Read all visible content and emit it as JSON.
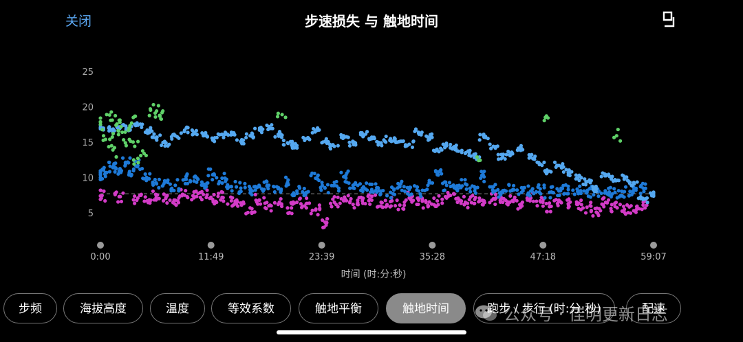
{
  "header": {
    "close_label": "关闭",
    "title": "步速损失 与 触地时间",
    "expand_icon": "expand-icon"
  },
  "tabs": [
    {
      "label": "步频",
      "active": false
    },
    {
      "label": "海拔高度",
      "active": false
    },
    {
      "label": "温度",
      "active": false
    },
    {
      "label": "等效系数",
      "active": false
    },
    {
      "label": "触地平衡",
      "active": false
    },
    {
      "label": "触地时间",
      "active": true
    },
    {
      "label": "跑步 / 步行 (时:分:秒)",
      "active": false
    },
    {
      "label": "配速",
      "active": false
    }
  ],
  "watermark": {
    "text": "公众号 · 佳明更新日志",
    "icon": "wechat-icon"
  },
  "chart_data": {
    "type": "scatter",
    "title": "",
    "xlabel": "时间 (时:分:秒)",
    "ylabel": "",
    "xlim": [
      0,
      3547
    ],
    "ylim": [
      0,
      25
    ],
    "yticks": [
      5,
      10,
      15,
      20,
      25
    ],
    "xticks": [
      {
        "value": 0,
        "label": "0:00"
      },
      {
        "value": 709,
        "label": "11:49"
      },
      {
        "value": 1419,
        "label": "23:39"
      },
      {
        "value": 2128,
        "label": "35:28"
      },
      {
        "value": 2838,
        "label": "47:18"
      },
      {
        "value": 3547,
        "label": "59:07"
      }
    ],
    "reference_line": {
      "y": 7.8,
      "style": "dashed"
    },
    "colors": {
      "light_blue": "#55a8f0",
      "dark_blue": "#1e7ad8",
      "magenta": "#d33bc7",
      "green": "#5fd068",
      "reference": "#888888"
    },
    "series": [
      {
        "color": "light_blue",
        "x": [
          0,
          60,
          120,
          180,
          240,
          300,
          360,
          420,
          480,
          540,
          600,
          660,
          720,
          780,
          840,
          900,
          960,
          1020,
          1080,
          1140,
          1200,
          1260,
          1320,
          1380,
          1440,
          1500,
          1560,
          1620,
          1680,
          1740,
          1800,
          1860,
          1920,
          1980,
          2040,
          2100,
          2160,
          2220,
          2280,
          2340,
          2400,
          2460,
          2520,
          2580,
          2640,
          2700,
          2760,
          2820,
          2880,
          2940,
          3000,
          3060,
          3120,
          3180,
          3240,
          3300,
          3360,
          3420,
          3480,
          3547
        ],
        "y": [
          17.2,
          17.0,
          17.2,
          17.0,
          17.5,
          16.8,
          15.8,
          15.0,
          16.0,
          16.8,
          16.5,
          16.0,
          15.5,
          16.2,
          16.5,
          15.2,
          16.0,
          16.8,
          17.3,
          16.2,
          15.0,
          14.6,
          15.6,
          16.8,
          15.2,
          14.5,
          16.0,
          15.0,
          16.2,
          15.8,
          15.0,
          15.6,
          15.2,
          14.8,
          16.5,
          15.8,
          13.9,
          14.6,
          14.2,
          13.5,
          13.0,
          15.8,
          14.5,
          13.0,
          13.6,
          14.2,
          13.0,
          12.0,
          11.0,
          11.8,
          10.8,
          10.0,
          9.5,
          8.5,
          10.5,
          9.8,
          10.0,
          9.2,
          7.0,
          7.8
        ]
      },
      {
        "color": "dark_blue",
        "x": [
          0,
          40,
          80,
          120,
          160,
          200,
          240,
          300,
          360,
          420,
          480,
          540,
          600,
          660,
          720,
          780,
          840,
          900,
          960,
          1020,
          1080,
          1140,
          1200,
          1260,
          1320,
          1380,
          1440,
          1500,
          1560,
          1620,
          1680,
          1740,
          1800,
          1860,
          1920,
          1980,
          2040,
          2100,
          2160,
          2220,
          2280,
          2340,
          2400,
          2460,
          2520,
          2580,
          2640,
          2700,
          2760,
          2820,
          2880,
          2940,
          3000,
          3060,
          3120,
          3180,
          3240,
          3300,
          3360,
          3420,
          3480
        ],
        "y": [
          10.6,
          10.8,
          11.5,
          11.0,
          12.2,
          10.5,
          11.8,
          10.0,
          9.2,
          9.5,
          9.0,
          9.8,
          9.6,
          9.0,
          10.5,
          10.0,
          8.8,
          8.6,
          8.4,
          8.8,
          9.0,
          8.5,
          9.4,
          8.2,
          8.0,
          10.0,
          8.6,
          9.0,
          10.2,
          9.0,
          8.6,
          8.4,
          8.2,
          8.0,
          8.8,
          8.4,
          8.2,
          9.0,
          10.5,
          9.0,
          8.5,
          9.2,
          8.2,
          10.2,
          8.8,
          8.0,
          8.3,
          8.0,
          8.2,
          8.5,
          8.0,
          8.2,
          8.4,
          8.1,
          8.0,
          8.2,
          8.0,
          8.0,
          8.1,
          8.3,
          8.6
        ]
      },
      {
        "color": "magenta",
        "x": [
          0,
          120,
          240,
          300,
          360,
          420,
          480,
          540,
          600,
          660,
          720,
          780,
          840,
          900,
          960,
          1020,
          1080,
          1140,
          1200,
          1260,
          1320,
          1380,
          1440,
          1500,
          1560,
          1620,
          1680,
          1740,
          1800,
          1860,
          1920,
          1980,
          2040,
          2100,
          2160,
          2220,
          2280,
          2340,
          2400,
          2460,
          2520,
          2580,
          2640,
          2700,
          2760,
          2820,
          2880,
          2940,
          3000,
          3060,
          3120,
          3180,
          3240,
          3300,
          3360,
          3420,
          3480
        ],
        "y": [
          7.5,
          7.4,
          7.2,
          6.8,
          7.6,
          7.3,
          6.9,
          7.6,
          7.4,
          7.7,
          7.0,
          7.3,
          6.8,
          6.5,
          5.8,
          6.9,
          6.1,
          6.3,
          5.8,
          6.6,
          6.4,
          5.5,
          3.8,
          6.6,
          6.8,
          6.3,
          7.0,
          6.9,
          6.6,
          6.7,
          6.2,
          7.2,
          6.9,
          6.2,
          6.8,
          7.2,
          7.1,
          6.6,
          7.0,
          6.8,
          7.1,
          6.6,
          6.8,
          6.4,
          7.2,
          6.8,
          6.0,
          6.9,
          6.4,
          6.3,
          5.9,
          5.2,
          6.6,
          6.0,
          5.6,
          5.4,
          6.2
        ]
      },
      {
        "color": "green",
        "x": [
          0,
          20,
          40,
          60,
          80,
          100,
          120,
          140,
          160,
          180,
          200,
          220,
          240,
          280,
          320,
          360,
          380,
          400,
          1165,
          2415,
          2860,
          3310
        ],
        "y": [
          18.5,
          16.0,
          19.0,
          15.5,
          14.0,
          17.5,
          18.2,
          16.5,
          15.0,
          16.8,
          17.8,
          14.5,
          12.8,
          13.5,
          19.8,
          19.5,
          18.8,
          19.5,
          19.0,
          13.0,
          18.8,
          16.0
        ]
      }
    ]
  }
}
